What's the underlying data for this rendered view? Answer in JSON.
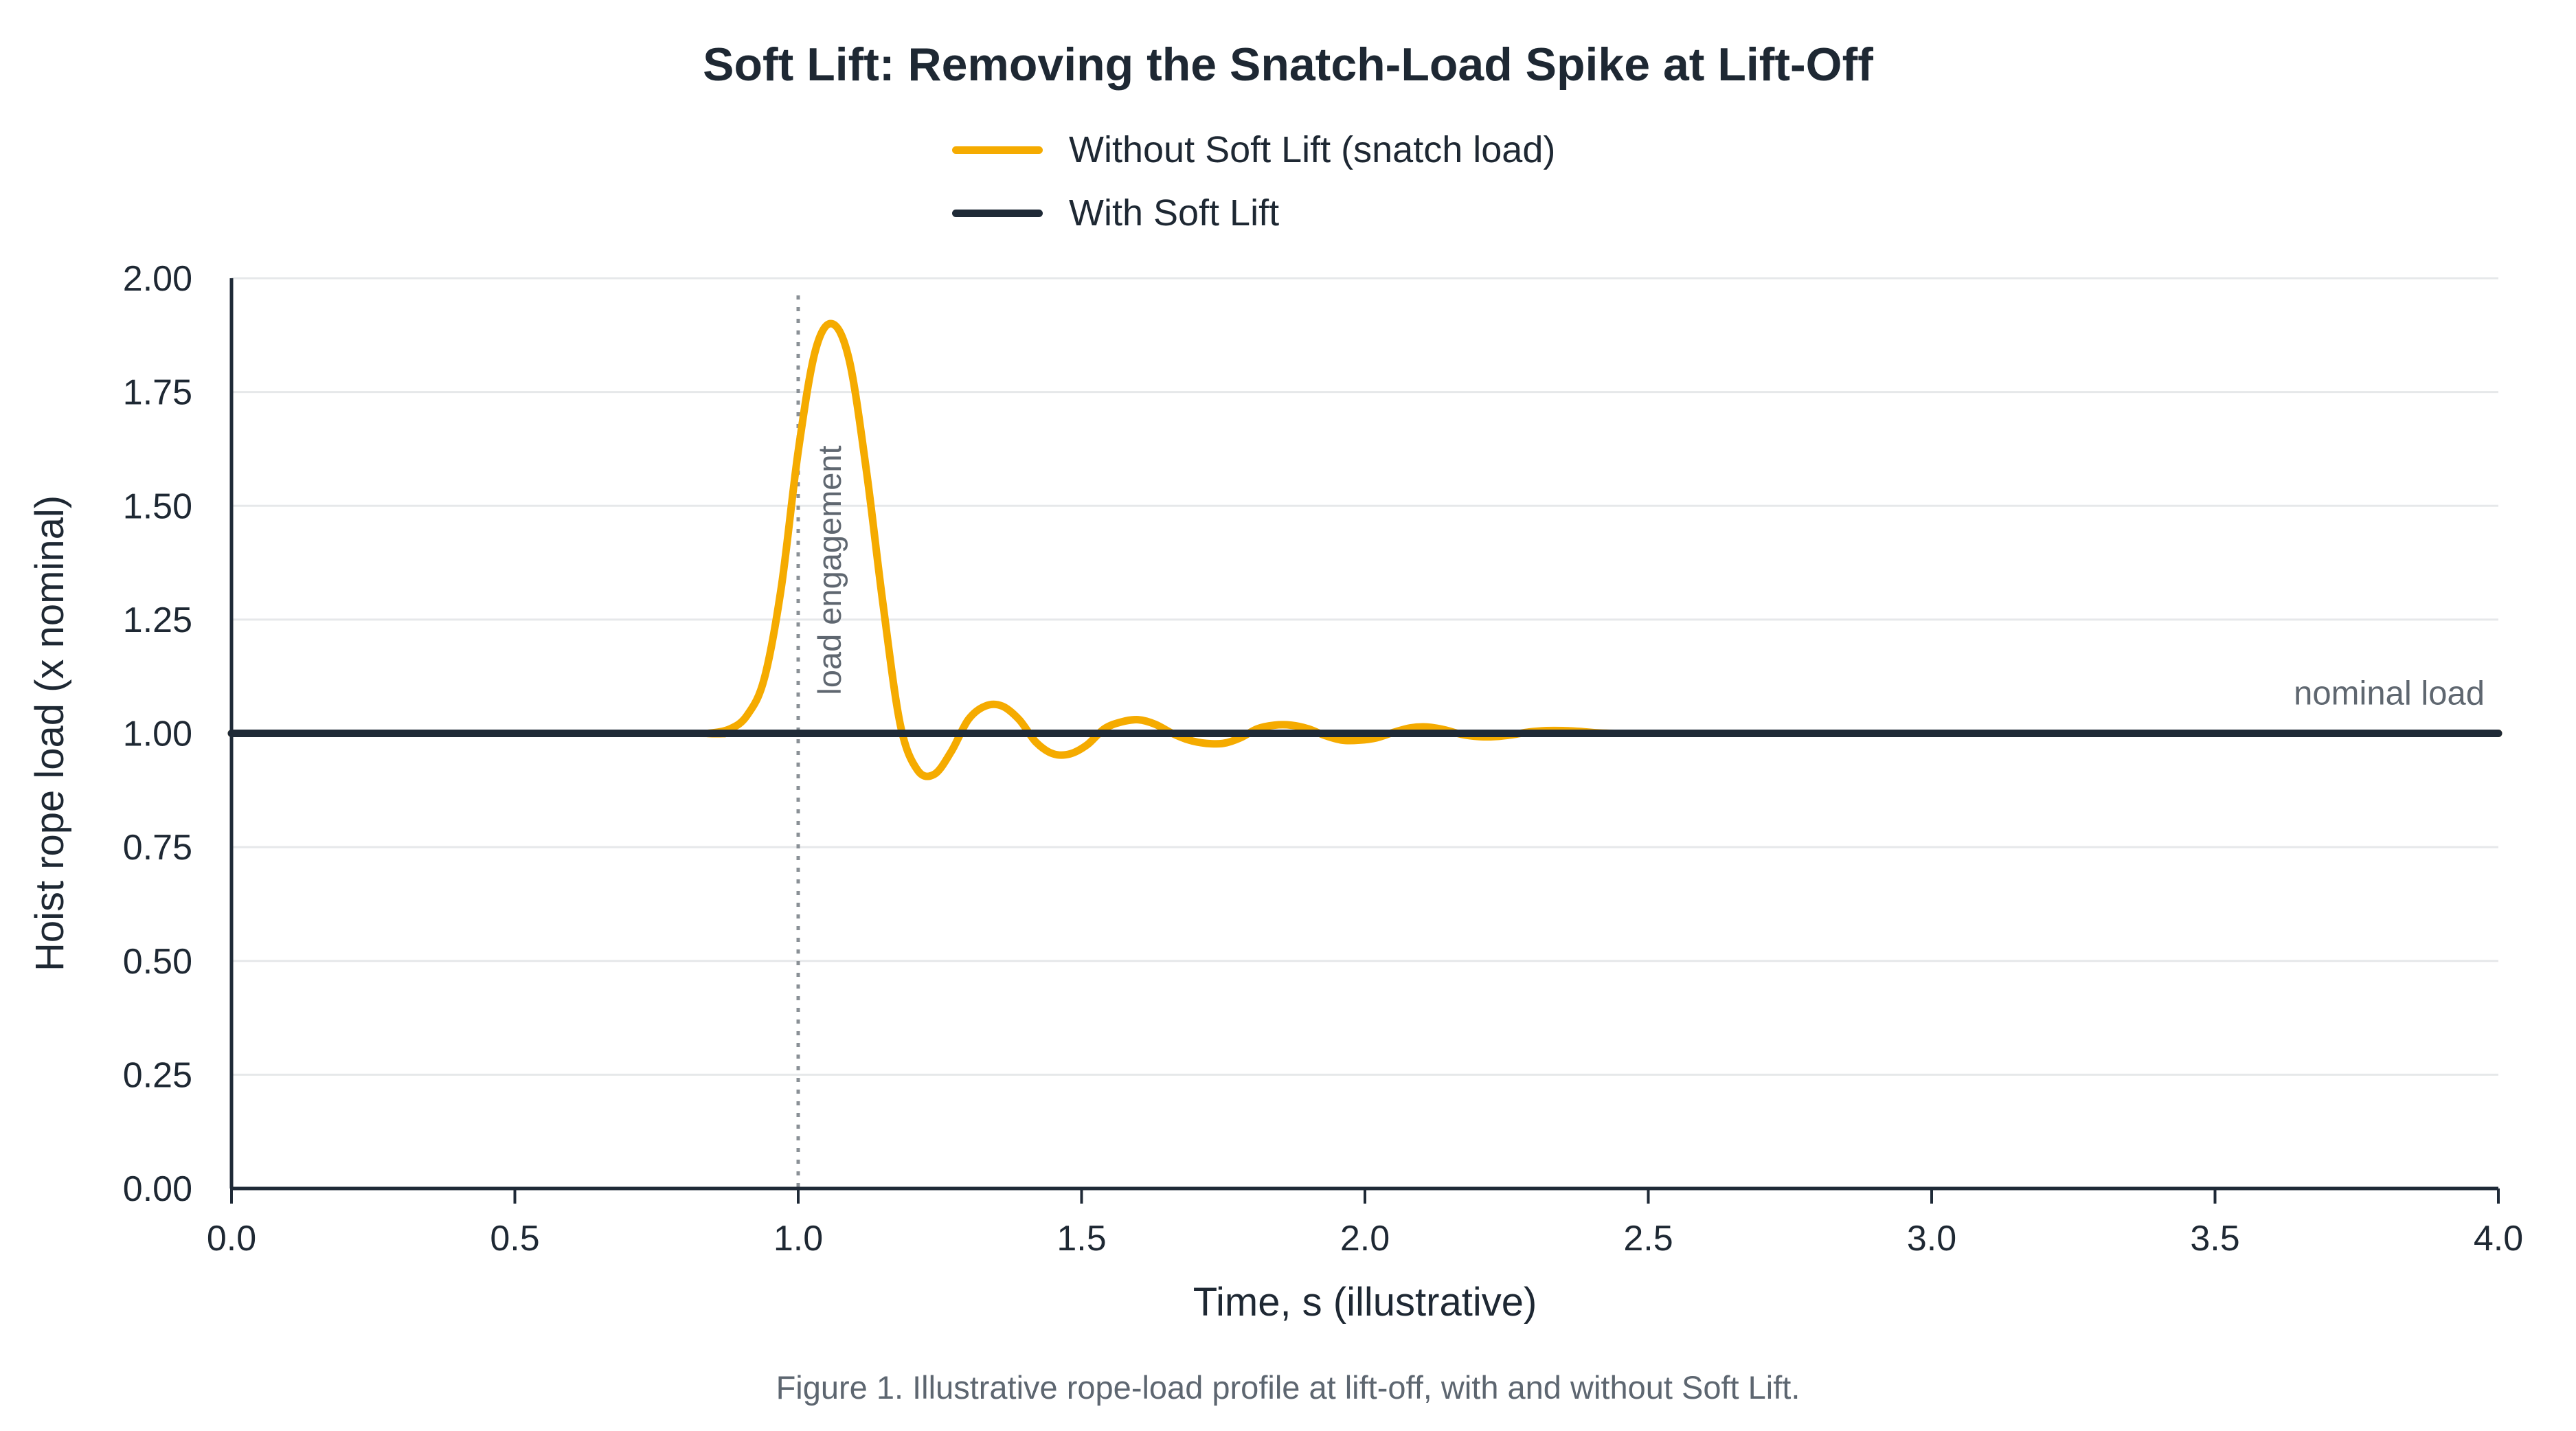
{
  "colors": {
    "without": "#f5ab00",
    "with": "#1f2a37",
    "grid": "#e6e8ea",
    "axis": "#1f2a37",
    "marker": "#8a9096",
    "annotation": "#5f6770"
  },
  "chart_data": {
    "type": "line",
    "title": "Soft Lift: Removing the Snatch-Load Spike at Lift-Off",
    "xlabel": "Time, s (illustrative)",
    "ylabel": "Hoist rope load (x nominal)",
    "xlim": [
      0.0,
      4.0
    ],
    "ylim": [
      0.0,
      2.0
    ],
    "x_ticks": [
      "0.0",
      "0.5",
      "1.0",
      "1.5",
      "2.0",
      "2.5",
      "3.0",
      "3.5",
      "4.0"
    ],
    "y_ticks": [
      "0.00",
      "0.25",
      "0.50",
      "0.75",
      "1.00",
      "1.25",
      "1.50",
      "1.75",
      "2.00"
    ],
    "grid": true,
    "legend_position": "top-center",
    "series": [
      {
        "name": "Without Soft Lift (snatch load)",
        "x": [
          0.0,
          0.8,
          0.84,
          0.88,
          0.91,
          0.94,
          0.97,
          1.0,
          1.03,
          1.06,
          1.09,
          1.12,
          1.15,
          1.18,
          1.21,
          1.24,
          1.27,
          1.3,
          1.33,
          1.36,
          1.39,
          1.42,
          1.45,
          1.48,
          1.51,
          1.54,
          1.57,
          1.6,
          1.63,
          1.66,
          1.69,
          1.72,
          1.75,
          1.78,
          1.81,
          1.84,
          1.87,
          1.9,
          1.93,
          1.96,
          1.99,
          2.02,
          2.05,
          2.08,
          2.11,
          2.14,
          2.17,
          2.2,
          2.23,
          2.26,
          2.29,
          2.32,
          2.35,
          2.38,
          2.41,
          2.44,
          2.47,
          2.5,
          4.0
        ],
        "y": [
          1.0,
          1.0,
          1.0,
          1.01,
          1.04,
          1.12,
          1.32,
          1.62,
          1.84,
          1.9,
          1.82,
          1.58,
          1.28,
          1.02,
          0.92,
          0.91,
          0.96,
          1.03,
          1.06,
          1.06,
          1.03,
          0.98,
          0.955,
          0.955,
          0.975,
          1.01,
          1.025,
          1.03,
          1.02,
          1.0,
          0.985,
          0.978,
          0.978,
          0.99,
          1.01,
          1.018,
          1.018,
          1.01,
          0.995,
          0.985,
          0.985,
          0.99,
          1.002,
          1.012,
          1.014,
          1.008,
          0.998,
          0.993,
          0.993,
          0.997,
          1.003,
          1.006,
          1.006,
          1.004,
          1.001,
          1.0,
          1.0,
          1.0,
          1.0
        ]
      },
      {
        "name": "With Soft Lift",
        "x": [
          0.0,
          4.0
        ],
        "y": [
          1.0,
          1.0
        ]
      }
    ],
    "annotations": [
      {
        "text": "load engagement",
        "x": 1.0,
        "type": "vline"
      },
      {
        "text": "nominal load",
        "y": 1.0,
        "type": "hline-label"
      }
    ]
  },
  "caption": "Figure 1. Illustrative rope-load profile at lift-off, with and without Soft Lift."
}
